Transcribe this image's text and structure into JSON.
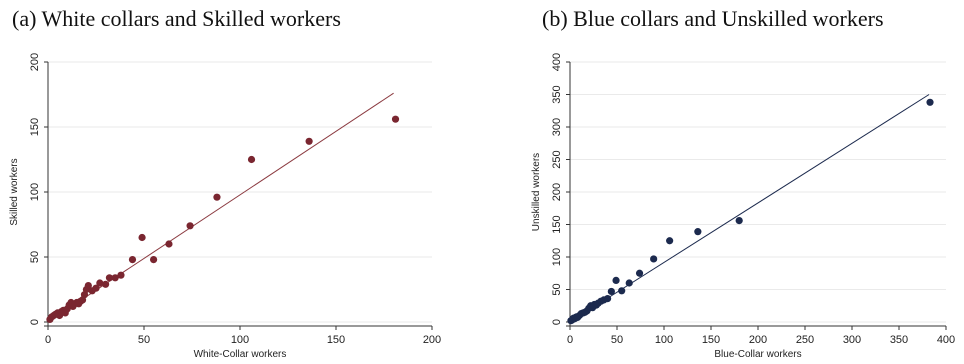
{
  "panels": [
    {
      "title": "(a) White collars and Skilled workers"
    },
    {
      "title": "(b) Blue collars and Unskilled workers"
    }
  ],
  "chart_data": [
    {
      "type": "scatter",
      "title": "(a) White collars and Skilled workers",
      "xlabel": "White-Collar workers",
      "ylabel": "Skilled workers",
      "xlim": [
        0,
        200
      ],
      "ylim": [
        0,
        200
      ],
      "xticks": [
        0,
        50,
        100,
        150,
        200
      ],
      "yticks": [
        0,
        50,
        100,
        150,
        200
      ],
      "grid": true,
      "marker_color": "#7a2630",
      "line_color": "#8b3a40",
      "fit_line": {
        "x": [
          0,
          180
        ],
        "y": [
          0,
          176
        ]
      },
      "points": [
        {
          "x": 1,
          "y": 2
        },
        {
          "x": 2,
          "y": 4
        },
        {
          "x": 3,
          "y": 5
        },
        {
          "x": 4,
          "y": 6
        },
        {
          "x": 5,
          "y": 7
        },
        {
          "x": 6,
          "y": 5
        },
        {
          "x": 7,
          "y": 8
        },
        {
          "x": 8,
          "y": 9
        },
        {
          "x": 9,
          "y": 7
        },
        {
          "x": 10,
          "y": 10
        },
        {
          "x": 11,
          "y": 13
        },
        {
          "x": 12,
          "y": 15
        },
        {
          "x": 13,
          "y": 12
        },
        {
          "x": 14,
          "y": 14
        },
        {
          "x": 15,
          "y": 15
        },
        {
          "x": 16,
          "y": 14
        },
        {
          "x": 17,
          "y": 16
        },
        {
          "x": 18,
          "y": 17
        },
        {
          "x": 19,
          "y": 21
        },
        {
          "x": 20,
          "y": 25
        },
        {
          "x": 21,
          "y": 28
        },
        {
          "x": 23,
          "y": 24
        },
        {
          "x": 25,
          "y": 26
        },
        {
          "x": 27,
          "y": 30
        },
        {
          "x": 30,
          "y": 29
        },
        {
          "x": 32,
          "y": 34
        },
        {
          "x": 35,
          "y": 34
        },
        {
          "x": 38,
          "y": 36
        },
        {
          "x": 44,
          "y": 48
        },
        {
          "x": 49,
          "y": 65
        },
        {
          "x": 55,
          "y": 48
        },
        {
          "x": 63,
          "y": 60
        },
        {
          "x": 74,
          "y": 74
        },
        {
          "x": 88,
          "y": 96
        },
        {
          "x": 106,
          "y": 125
        },
        {
          "x": 136,
          "y": 139
        },
        {
          "x": 181,
          "y": 156
        }
      ]
    },
    {
      "type": "scatter",
      "title": "(b) Blue collars and Unskilled workers",
      "xlabel": "Blue-Collar workers",
      "ylabel": "Unskilled workers",
      "xlim": [
        0,
        400
      ],
      "ylim": [
        0,
        400
      ],
      "xticks": [
        0,
        50,
        100,
        150,
        200,
        250,
        300,
        350,
        400
      ],
      "yticks": [
        0,
        50,
        100,
        150,
        200,
        250,
        300,
        350,
        400
      ],
      "grid": true,
      "marker_color": "#1c2a4e",
      "line_color": "#1c2a4e",
      "fit_line": {
        "x": [
          0,
          382
        ],
        "y": [
          0,
          350
        ]
      },
      "points": [
        {
          "x": 1,
          "y": 2
        },
        {
          "x": 2,
          "y": 3
        },
        {
          "x": 3,
          "y": 5
        },
        {
          "x": 4,
          "y": 6
        },
        {
          "x": 5,
          "y": 5
        },
        {
          "x": 6,
          "y": 7
        },
        {
          "x": 7,
          "y": 8
        },
        {
          "x": 8,
          "y": 7
        },
        {
          "x": 10,
          "y": 10
        },
        {
          "x": 12,
          "y": 13
        },
        {
          "x": 14,
          "y": 14
        },
        {
          "x": 16,
          "y": 15
        },
        {
          "x": 18,
          "y": 17
        },
        {
          "x": 20,
          "y": 21
        },
        {
          "x": 22,
          "y": 25
        },
        {
          "x": 24,
          "y": 22
        },
        {
          "x": 26,
          "y": 27
        },
        {
          "x": 28,
          "y": 26
        },
        {
          "x": 30,
          "y": 29
        },
        {
          "x": 33,
          "y": 32
        },
        {
          "x": 36,
          "y": 34
        },
        {
          "x": 40,
          "y": 36
        },
        {
          "x": 44,
          "y": 47
        },
        {
          "x": 49,
          "y": 64
        },
        {
          "x": 55,
          "y": 48
        },
        {
          "x": 63,
          "y": 60
        },
        {
          "x": 74,
          "y": 75
        },
        {
          "x": 89,
          "y": 97
        },
        {
          "x": 106,
          "y": 125
        },
        {
          "x": 136,
          "y": 139
        },
        {
          "x": 180,
          "y": 156
        },
        {
          "x": 383,
          "y": 338
        }
      ]
    }
  ]
}
